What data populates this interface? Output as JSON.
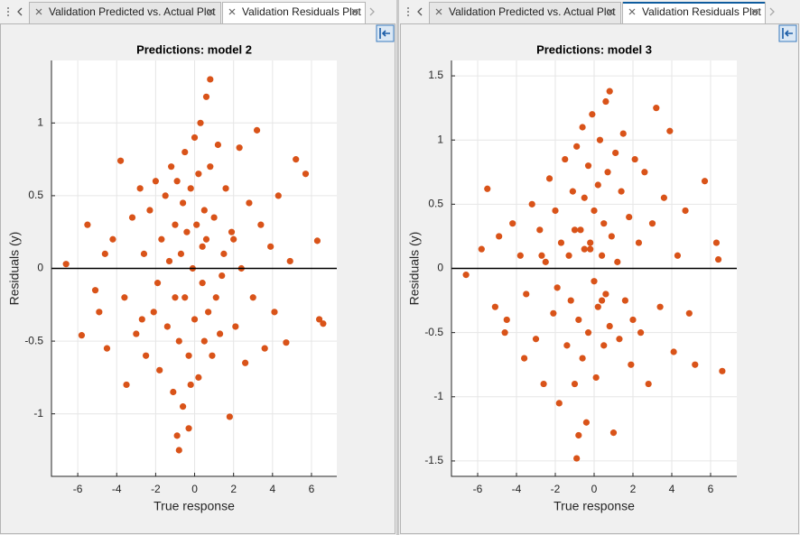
{
  "tab_groups": [
    [
      "Validation Predicted vs. Actual Plot",
      "Validation Residuals Plot"
    ],
    [
      "Validation Predicted vs. Actual Plot",
      "Validation Residuals Plot"
    ]
  ],
  "active_tab": 1,
  "chart_data": [
    {
      "type": "scatter",
      "title": "Predictions: model 2",
      "xlabel": "True response",
      "ylabel": "Residuals (y)",
      "color": "#d95319",
      "xlim": [
        -7.35,
        7.3
      ],
      "ylim": [
        -1.43,
        1.43
      ],
      "xticks": [
        -6,
        -4,
        -2,
        0,
        2,
        4,
        6
      ],
      "yticks": [
        -1,
        -0.5,
        0,
        0.5,
        1
      ],
      "grid": true,
      "zero_line": true,
      "x": [
        -6.6,
        -5.8,
        -5.5,
        -5.1,
        -4.9,
        -4.6,
        -4.5,
        -4.2,
        -3.8,
        -3.6,
        -3.5,
        -3.2,
        -3.0,
        -2.8,
        -2.6,
        -2.5,
        -2.3,
        -2.1,
        -2.0,
        -1.8,
        -1.7,
        -1.5,
        -1.4,
        -1.3,
        -1.2,
        -1.1,
        -1.0,
        -0.9,
        -0.9,
        -0.8,
        -0.8,
        -0.7,
        -0.6,
        -0.6,
        -0.5,
        -0.5,
        -0.4,
        -0.3,
        -0.3,
        -0.2,
        -0.1,
        0.0,
        0.0,
        0.1,
        0.2,
        0.2,
        0.3,
        0.4,
        0.5,
        0.5,
        0.6,
        0.6,
        0.7,
        0.8,
        0.8,
        0.9,
        1.0,
        1.1,
        1.2,
        1.3,
        1.5,
        1.6,
        1.8,
        1.9,
        2.1,
        2.3,
        2.4,
        2.6,
        2.8,
        3.0,
        3.2,
        3.4,
        3.6,
        3.9,
        4.1,
        4.3,
        4.7,
        4.9,
        5.2,
        5.7,
        6.3,
        6.4,
        6.6,
        -1.9,
        -1.0,
        0.4,
        1.4,
        -2.7,
        2.0,
        -0.2
      ],
      "y": [
        0.03,
        -0.46,
        0.3,
        -0.15,
        -0.3,
        0.1,
        -0.55,
        0.2,
        0.74,
        -0.2,
        -0.8,
        0.35,
        -0.45,
        0.55,
        0.1,
        -0.6,
        0.4,
        -0.3,
        0.6,
        -0.7,
        0.2,
        0.5,
        -0.4,
        0.05,
        0.7,
        -0.85,
        0.3,
        -1.15,
        0.6,
        -1.25,
        -0.5,
        0.1,
        0.45,
        -0.95,
        -0.2,
        0.8,
        0.25,
        -1.1,
        -0.6,
        0.55,
        0.0,
        0.9,
        -0.35,
        0.3,
        -0.75,
        0.65,
        1.0,
        -0.1,
        0.4,
        -0.5,
        1.18,
        0.2,
        -0.3,
        1.3,
        0.7,
        -0.6,
        0.35,
        -0.2,
        0.85,
        -0.45,
        0.1,
        0.55,
        -1.02,
        0.25,
        -0.4,
        0.83,
        0.0,
        -0.65,
        0.45,
        -0.2,
        0.95,
        0.3,
        -0.55,
        0.15,
        -0.3,
        0.5,
        -0.51,
        0.05,
        0.75,
        0.65,
        0.19,
        -0.35,
        -0.38,
        -0.1,
        -0.2,
        0.15,
        -0.05,
        -0.35,
        0.2,
        -0.8
      ]
    },
    {
      "type": "scatter",
      "title": "Predictions: model 3",
      "xlabel": "True response",
      "ylabel": "Residuals (y)",
      "color": "#d95319",
      "xlim": [
        -7.35,
        7.35
      ],
      "ylim": [
        -1.62,
        1.62
      ],
      "xticks": [
        -6,
        -4,
        -2,
        0,
        2,
        4,
        6
      ],
      "yticks": [
        -1.5,
        -1,
        -0.5,
        0,
        0.5,
        1,
        1.5
      ],
      "grid": true,
      "zero_line": true,
      "x": [
        -6.6,
        -5.8,
        -5.5,
        -5.1,
        -4.9,
        -4.6,
        -4.5,
        -4.2,
        -3.8,
        -3.6,
        -3.5,
        -3.2,
        -3.0,
        -2.8,
        -2.6,
        -2.5,
        -2.3,
        -2.1,
        -2.0,
        -1.8,
        -1.7,
        -1.5,
        -1.4,
        -1.3,
        -1.2,
        -1.1,
        -1.0,
        -0.9,
        -0.9,
        -0.8,
        -0.8,
        -0.7,
        -0.6,
        -0.6,
        -0.5,
        -0.5,
        -0.4,
        -0.3,
        -0.3,
        -0.2,
        -0.1,
        0.0,
        0.0,
        0.1,
        0.2,
        0.2,
        0.3,
        0.4,
        0.5,
        0.5,
        0.6,
        0.6,
        0.7,
        0.8,
        0.8,
        0.9,
        1.0,
        1.1,
        1.2,
        1.3,
        1.5,
        1.6,
        1.8,
        1.9,
        2.1,
        2.3,
        2.4,
        2.6,
        2.8,
        3.0,
        3.2,
        3.4,
        3.6,
        3.9,
        4.1,
        4.3,
        4.7,
        4.9,
        5.2,
        5.7,
        6.3,
        6.4,
        6.6,
        -1.9,
        -1.0,
        0.4,
        1.4,
        -2.7,
        2.0,
        -0.2
      ],
      "y": [
        -0.05,
        0.15,
        0.62,
        -0.3,
        0.25,
        -0.5,
        -0.4,
        0.35,
        0.1,
        -0.7,
        -0.2,
        0.5,
        -0.55,
        0.3,
        -0.9,
        0.05,
        0.7,
        -0.35,
        0.45,
        -1.05,
        0.2,
        0.85,
        -0.6,
        0.1,
        -0.25,
        0.6,
        -0.9,
        -1.48,
        0.95,
        -1.3,
        -0.4,
        0.3,
        1.1,
        -0.7,
        0.15,
        0.55,
        -1.2,
        0.8,
        -0.5,
        0.2,
        1.2,
        -0.1,
        0.45,
        -0.85,
        0.65,
        -0.3,
        1.0,
        0.1,
        -0.6,
        0.35,
        1.3,
        -0.2,
        0.75,
        1.38,
        -0.45,
        0.25,
        -1.28,
        0.9,
        0.05,
        -0.55,
        1.05,
        -0.25,
        0.4,
        -0.75,
        0.85,
        0.2,
        -0.5,
        0.75,
        -0.9,
        0.35,
        1.25,
        -0.3,
        0.55,
        1.07,
        -0.65,
        0.1,
        0.45,
        -0.35,
        -0.75,
        0.68,
        0.2,
        0.07,
        -0.8,
        -0.15,
        0.3,
        -0.25,
        0.6,
        0.1,
        -0.4,
        0.15
      ]
    }
  ]
}
